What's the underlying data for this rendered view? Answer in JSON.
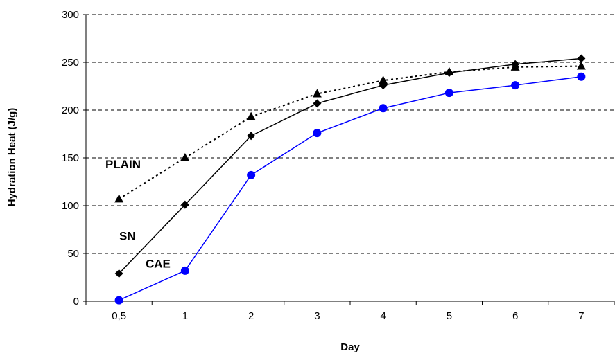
{
  "chart_data": {
    "type": "line",
    "categories": [
      "0,5",
      "1",
      "2",
      "3",
      "4",
      "5",
      "6",
      "7"
    ],
    "xlabel": "Day",
    "ylabel": "Hydration Heat (J/g)",
    "ylim": [
      0,
      300
    ],
    "yticks": [
      0,
      50,
      100,
      150,
      200,
      250,
      300
    ],
    "grid": "horizontal dashed",
    "legend": "none (inline labels)",
    "series": [
      {
        "name": "PLAIN",
        "values": [
          107,
          150,
          193,
          217,
          231,
          240,
          245,
          246
        ],
        "color": "#000000",
        "line_style": "dotted",
        "marker": "triangle"
      },
      {
        "name": "SN",
        "values": [
          29,
          101,
          173,
          207,
          226,
          239,
          248,
          254
        ],
        "color": "#000000",
        "line_style": "solid",
        "marker": "diamond"
      },
      {
        "name": "CAE",
        "values": [
          1,
          32,
          132,
          176,
          202,
          218,
          226,
          235
        ],
        "color": "#0000ff",
        "line_style": "solid",
        "marker": "circle"
      }
    ]
  }
}
